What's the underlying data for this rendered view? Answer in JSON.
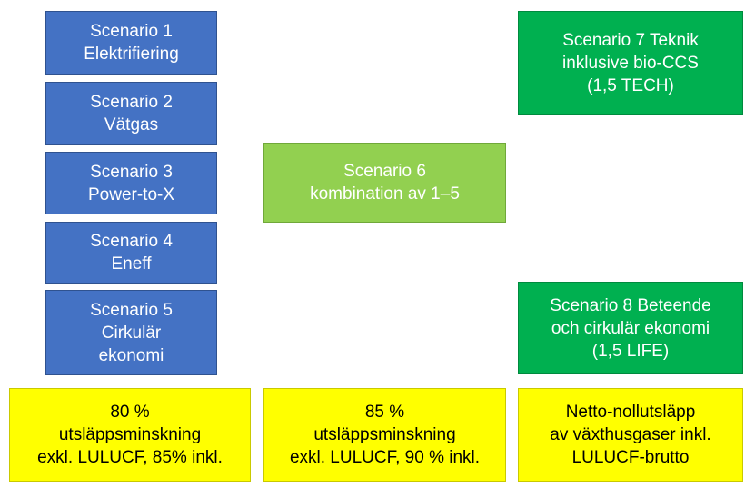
{
  "scenarios": [
    {
      "lines": [
        "Scenario 1",
        "Elektrifiering"
      ]
    },
    {
      "lines": [
        "Scenario 2",
        "Vätgas"
      ]
    },
    {
      "lines": [
        "Scenario 3",
        "Power-to-X"
      ]
    },
    {
      "lines": [
        "Scenario 4",
        "Eneff"
      ]
    },
    {
      "lines": [
        "Scenario 5",
        "Cirkulär",
        "ekonomi"
      ]
    },
    {
      "lines": [
        "Scenario 6",
        "kombination av 1–5"
      ]
    },
    {
      "lines": [
        "Scenario 7 Teknik",
        "inklusive bio-CCS",
        "(1,5 TECH)"
      ]
    },
    {
      "lines": [
        "Scenario 8 Beteende",
        "och cirkulär ekonomi",
        "(1,5 LIFE)"
      ]
    }
  ],
  "targets": [
    {
      "lines": [
        "80 %",
        "utsläppsminskning",
        "exkl. LULUCF, 85% inkl."
      ]
    },
    {
      "lines": [
        "85 %",
        "utsläppsminskning",
        "exkl. LULUCF, 90 % inkl."
      ]
    },
    {
      "lines": [
        "Netto-nollutsläpp",
        "av växthusgaser inkl.",
        "LULUCF-brutto"
      ]
    }
  ]
}
